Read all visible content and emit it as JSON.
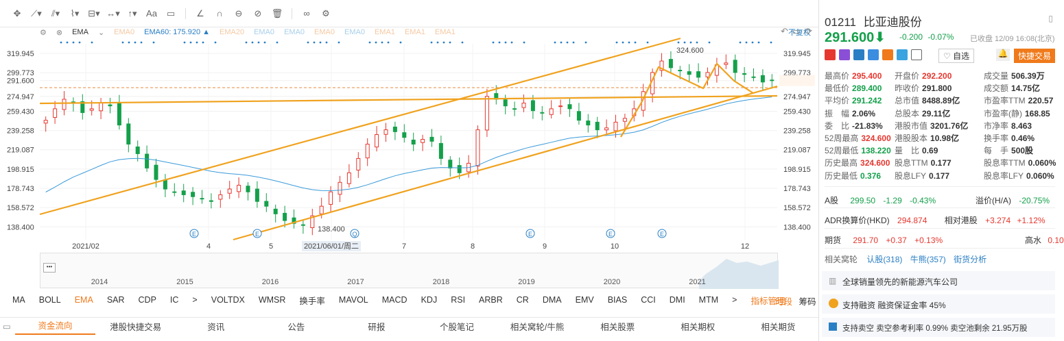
{
  "toolbar": {
    "icons": [
      "crosshair-icon",
      "line-tool-icon",
      "parallel-tool-icon",
      "fib-tool-icon",
      "pattern-tool-icon",
      "measure-tool-icon",
      "arrow-up-tool-icon",
      "text-tool-icon",
      "note-tool-icon",
      "ruler-tool-icon",
      "magnet-icon",
      "lock-icon",
      "hide-icon",
      "trash-icon",
      "link-icon",
      "settings-icon"
    ]
  },
  "ema_bar": {
    "name": "EMA",
    "items": [
      "EMA0",
      "EMA60: 175.920 ▲",
      "EMA20",
      "EMA0",
      "EMA0",
      "EMA0",
      "EMA0",
      "EMA1",
      "EMA1",
      "EMA1"
    ],
    "fuquan": "不复权"
  },
  "chart": {
    "y_labels": [
      "319.945",
      "299.773",
      "291.600",
      "274.947",
      "259.430",
      "239.258",
      "219.087",
      "198.915",
      "178.743",
      "158.572",
      "138.400"
    ],
    "y_labels_right": [
      "319.945",
      "299.773",
      "291.600",
      "274.947",
      "259.430",
      "239.258",
      "219.087",
      "198.915",
      "178.743",
      "158.572",
      "138.400"
    ],
    "x_labels": [
      "2021/02",
      "4",
      "5",
      "2021/06/01/周二",
      "7",
      "8",
      "9",
      "10",
      "12"
    ],
    "high_annot": "324.600",
    "low_annot": "138.400",
    "event_marker": "E",
    "event_marker2": "Q"
  },
  "chart_data": {
    "type": "candlestick",
    "ylim": [
      125,
      330
    ],
    "current_price": 291.6,
    "support_price": 274.947,
    "high": 324.6,
    "low": 138.4,
    "ema60": 175.92,
    "closes_approx": [
      250,
      262,
      272,
      268,
      258,
      262,
      268,
      265,
      245,
      225,
      215,
      200,
      188,
      178,
      175,
      172,
      170,
      168,
      165,
      172,
      178,
      182,
      175,
      165,
      160,
      152,
      145,
      142,
      140,
      150,
      160,
      175,
      185,
      195,
      210,
      225,
      235,
      240,
      238,
      232,
      225,
      230,
      228,
      210,
      200,
      195,
      205,
      240,
      275,
      272,
      265,
      262,
      268,
      260,
      258,
      262,
      265,
      262,
      250,
      245,
      240,
      242,
      248,
      252,
      262,
      280,
      300,
      312,
      305,
      302,
      298,
      295,
      300,
      308,
      310,
      300,
      298,
      295,
      290,
      291.6
    ]
  },
  "navigator": {
    "years": [
      "2014",
      "2015",
      "2016",
      "2017",
      "2018",
      "2019",
      "2020",
      "2021"
    ]
  },
  "indicator_tabs": [
    "MA",
    "BOLL",
    "EMA",
    "SAR",
    "CDP",
    "IC",
    ">",
    "VOLTDX",
    "WMSR",
    "换手率",
    "MAVOL",
    "MACD",
    "KDJ",
    "RSI",
    "ARBR",
    "CR",
    "DMA",
    "EMV",
    "BIAS",
    "CCI",
    "DMI",
    "MTM",
    ">",
    "指标管理"
  ],
  "indicator_right": [
    "时段",
    "筹码"
  ],
  "bottom_tabs": [
    "资金流向",
    "港股快捷交易",
    "资讯",
    "公告",
    "研报",
    "个股笔记",
    "相关窝轮/牛熊",
    "相关股票",
    "相关期权",
    "相关期货"
  ],
  "quote": {
    "code": "01211",
    "name": "比亚迪股份",
    "price": "291.600",
    "change": "-0.200",
    "change_pct": "-0.07%",
    "status": "已收盘 12/09 16:08(北京)",
    "watch_label": "自选",
    "quick_trade": "快捷交易",
    "colors": {
      "up": "#e5372f",
      "down": "#14a04a",
      "link": "#2a7fc4",
      "accent": "#f07a1b"
    }
  },
  "stats": [
    [
      {
        "k": "最高价",
        "v": "295.400",
        "c": "red"
      },
      {
        "k": "开盘价",
        "v": "292.200",
        "c": "red"
      },
      {
        "k": "成交量",
        "v": "506.39万",
        "c": ""
      }
    ],
    [
      {
        "k": "最低价",
        "v": "289.400",
        "c": "green"
      },
      {
        "k": "昨收价",
        "v": "291.800",
        "c": ""
      },
      {
        "k": "成交额",
        "v": "14.75亿",
        "c": ""
      }
    ],
    [
      {
        "k": "平均价",
        "v": "291.242",
        "c": "green"
      },
      {
        "k": "总市值",
        "v": "8488.89亿",
        "c": ""
      },
      {
        "k": "市盈率TTM",
        "v": "220.57",
        "c": ""
      }
    ],
    [
      {
        "k": "振　幅",
        "v": "2.06%",
        "c": ""
      },
      {
        "k": "总股本",
        "v": "29.11亿",
        "c": ""
      },
      {
        "k": "市盈率(静)",
        "v": "168.85",
        "c": ""
      }
    ],
    [
      {
        "k": "委　比",
        "v": "-21.83%",
        "c": ""
      },
      {
        "k": "港股市值",
        "v": "3201.76亿",
        "c": ""
      },
      {
        "k": "市净率",
        "v": "8.463",
        "c": ""
      }
    ],
    [
      {
        "k": "52周最高",
        "v": "324.600",
        "c": "red"
      },
      {
        "k": "港股股本",
        "v": "10.98亿",
        "c": ""
      },
      {
        "k": "换手率",
        "v": "0.46%",
        "c": ""
      }
    ],
    [
      {
        "k": "52周最低",
        "v": "138.220",
        "c": "green"
      },
      {
        "k": "量　比",
        "v": "0.69",
        "c": ""
      },
      {
        "k": "每　手",
        "v": "500股",
        "c": ""
      }
    ],
    [
      {
        "k": "历史最高",
        "v": "324.600",
        "c": "red"
      },
      {
        "k": "股息TTM",
        "v": "0.177",
        "c": ""
      },
      {
        "k": "股息率TTM",
        "v": "0.060%",
        "c": ""
      }
    ],
    [
      {
        "k": "历史最低",
        "v": "0.376",
        "c": "green"
      },
      {
        "k": "股息LFY",
        "v": "0.177",
        "c": ""
      },
      {
        "k": "股息率LFY",
        "v": "0.060%",
        "c": ""
      }
    ]
  ],
  "a_share": {
    "label": "A股",
    "price": "299.50",
    "chg": "-1.29",
    "pct": "-0.43%",
    "prem_label": "溢价(H/A)",
    "prem": "-20.75%"
  },
  "adr": {
    "label": "ADR换算价(HKD)",
    "price": "294.874",
    "rel_label": "相对港股",
    "chg": "+3.274",
    "pct": "+1.12%"
  },
  "futures": {
    "label": "期货",
    "price": "291.70",
    "chg": "+0.37",
    "pct": "+0.13%",
    "water_label": "高水",
    "water": "0.10"
  },
  "warrants": {
    "label": "相关窝轮",
    "items": [
      "认股(318)",
      "牛熊(357)",
      "街货分析"
    ]
  },
  "notes": [
    {
      "icon": "book-icon",
      "text": "全球销量领先的新能源汽车公司"
    },
    {
      "icon": "margin-icon",
      "text": "支持融资  融资保证金率 45%"
    },
    {
      "icon": "short-icon",
      "text": "支持卖空  卖空参考利率 0.99%  卖空池剩余 21.95万股"
    }
  ]
}
